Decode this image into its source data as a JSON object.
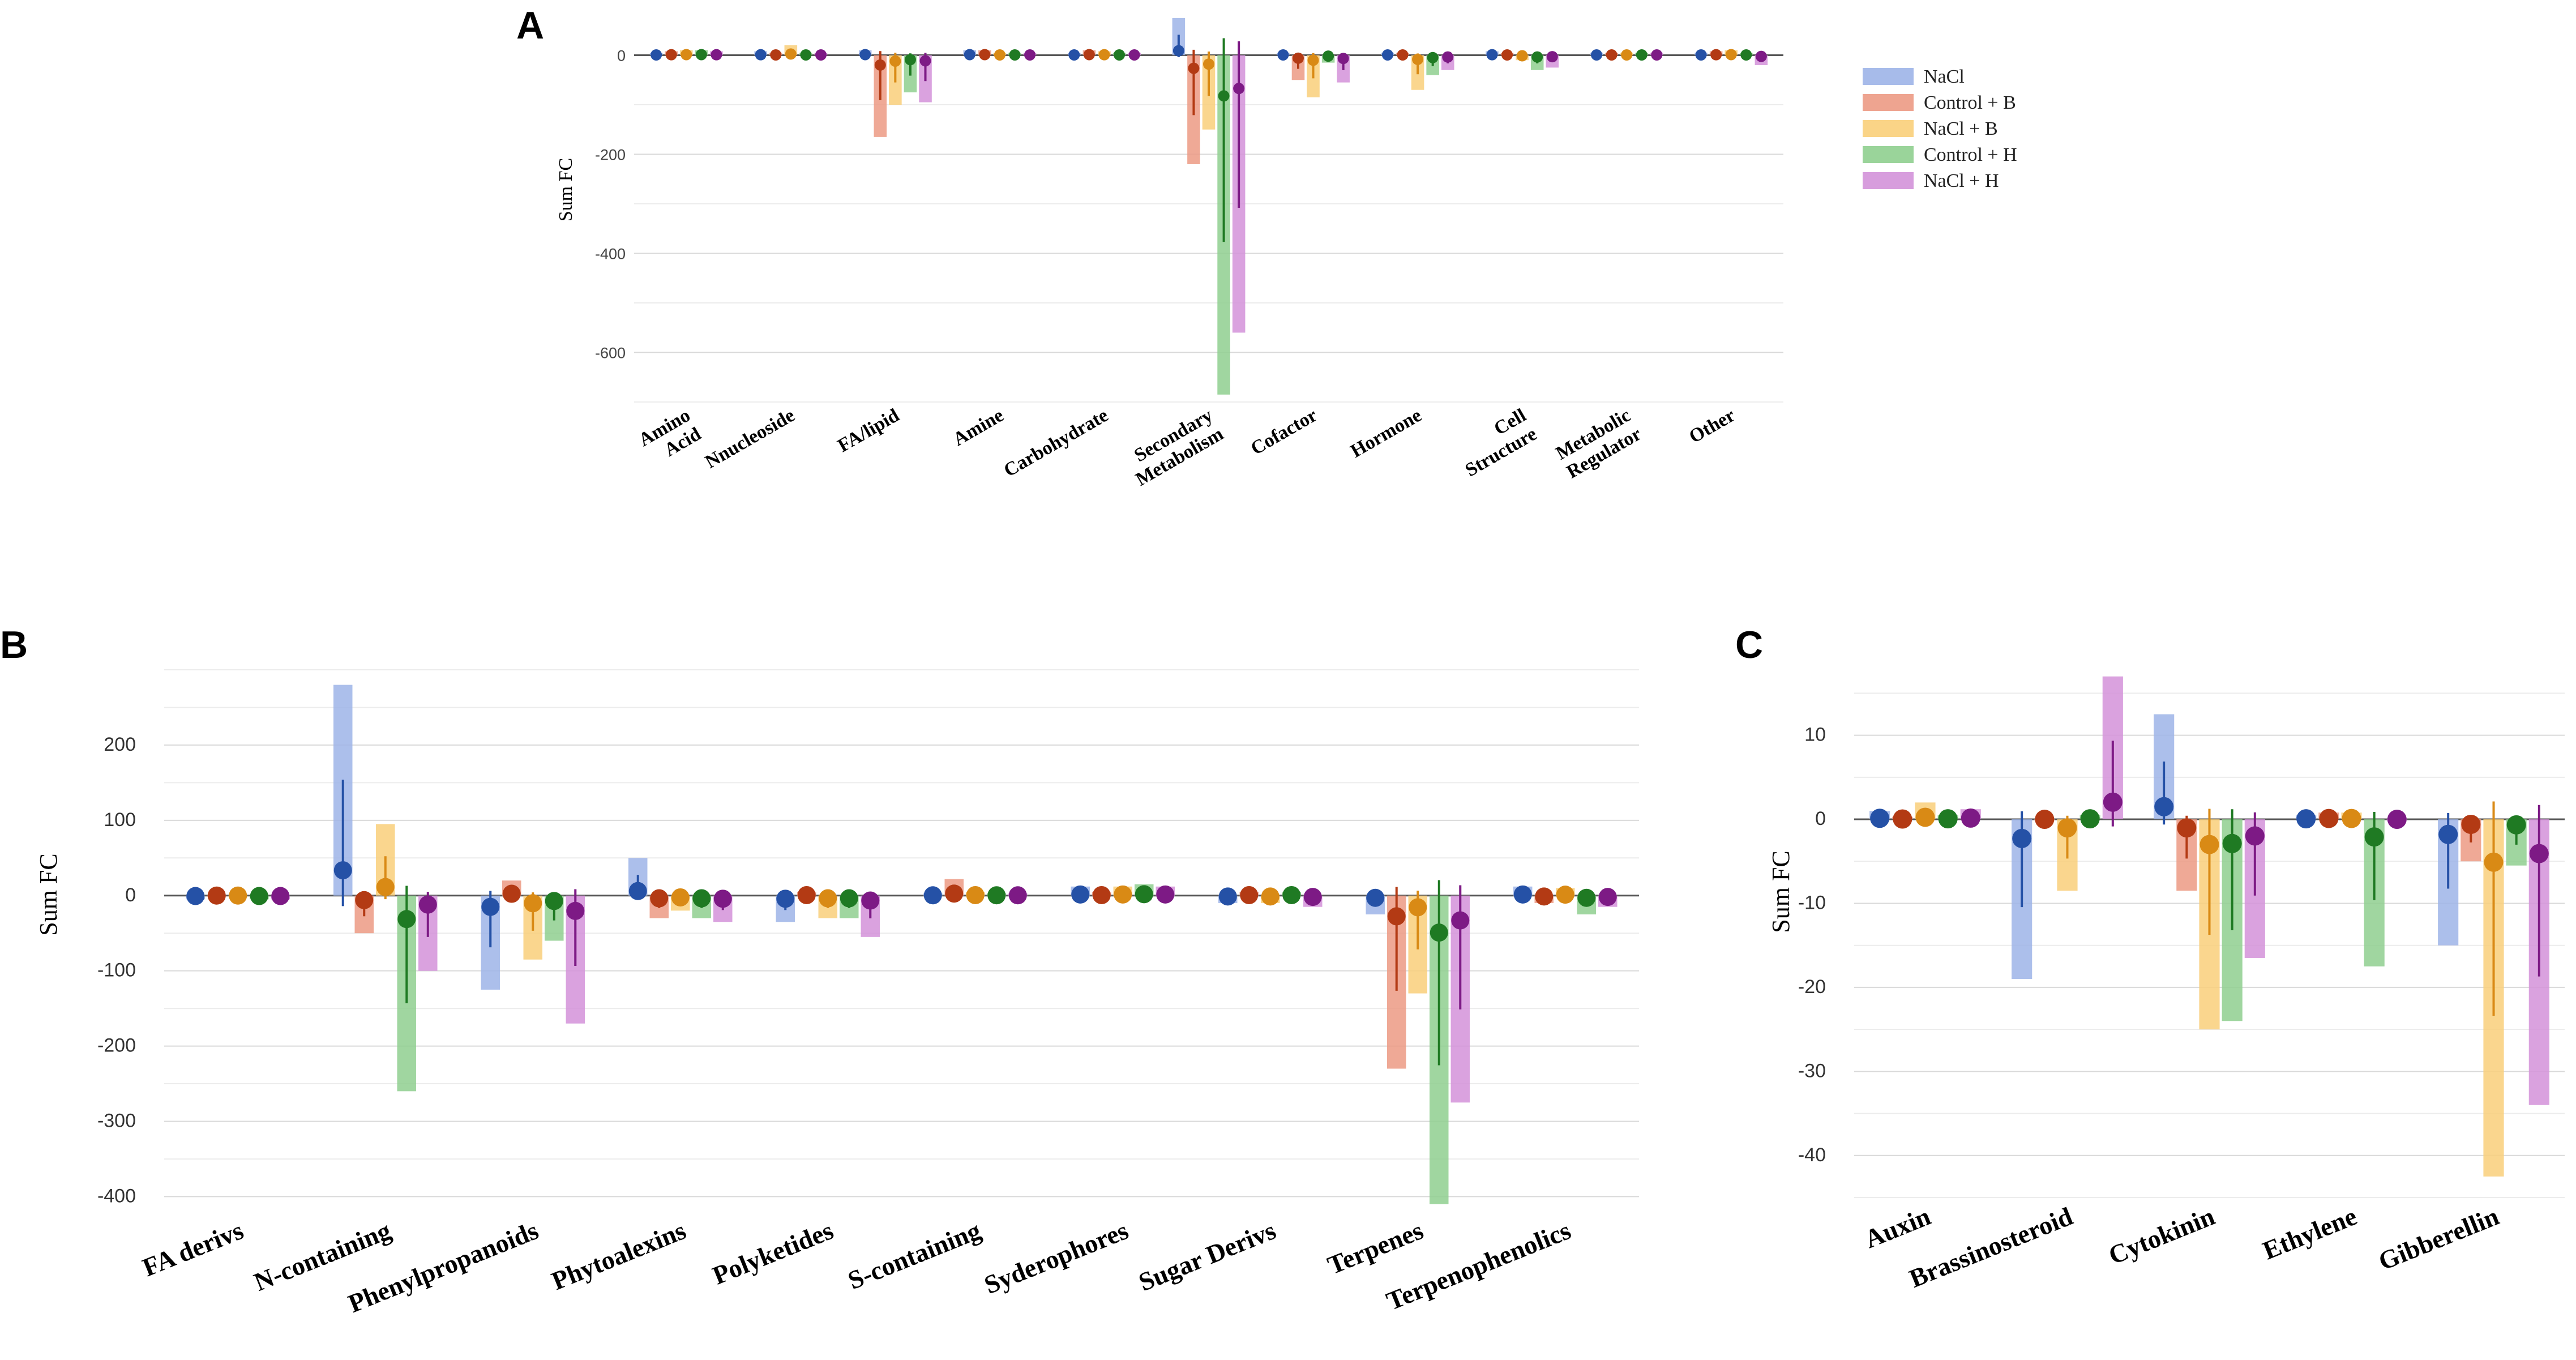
{
  "chart_data": [
    {
      "panel": "A",
      "type": "bar",
      "title": "",
      "ylabel": "Sum FC",
      "xlabel": "",
      "ylim": [
        -700,
        60
      ],
      "yticks": [
        0,
        -200,
        -400,
        -600
      ],
      "categories": [
        "Amino Acid",
        "Nnucleoside",
        "FA/lipid",
        "Amine",
        "Carbohydrate",
        "Secondary Metabolism",
        "Cofactor",
        "Hormone",
        "Cell Structure",
        "Metabolic Regulator",
        "Other"
      ],
      "series": [
        {
          "name": "NaCl",
          "values": [
            5,
            8,
            10,
            10,
            5,
            75,
            5,
            5,
            8,
            5,
            5
          ]
        },
        {
          "name": "Control + B",
          "values": [
            8,
            5,
            -165,
            10,
            10,
            -220,
            -50,
            5,
            5,
            5,
            8
          ]
        },
        {
          "name": "NaCl + B",
          "values": [
            10,
            20,
            -100,
            5,
            8,
            -150,
            -85,
            -70,
            -10,
            5,
            10
          ]
        },
        {
          "name": "Control + H",
          "values": [
            10,
            5,
            -75,
            5,
            5,
            -685,
            -15,
            -40,
            -30,
            5,
            5
          ]
        },
        {
          "name": "NaCl + H",
          "values": [
            8,
            5,
            -95,
            5,
            5,
            -560,
            -55,
            -30,
            -25,
            5,
            -20
          ]
        }
      ]
    },
    {
      "panel": "B",
      "type": "bar",
      "title": "",
      "ylabel": "Sum FC",
      "xlabel": "",
      "ylim": [
        -420,
        300
      ],
      "yticks": [
        200,
        100,
        0,
        -100,
        -200,
        -300,
        -400
      ],
      "categories": [
        "FA derivs",
        "N-containing",
        "Phenylpropanoids",
        "Phytoalexins",
        "Polyketides",
        "S-containing",
        "Syderophores",
        "Sugar Derivs",
        "Terpenes",
        "Terpenophenolics"
      ],
      "series": [
        {
          "name": "NaCl",
          "values": [
            -5,
            280,
            -125,
            50,
            -35,
            3,
            12,
            -10,
            -25,
            12
          ]
        },
        {
          "name": "Control + B",
          "values": [
            0,
            -50,
            20,
            -30,
            5,
            22,
            5,
            5,
            -230,
            -10
          ]
        },
        {
          "name": "NaCl + B",
          "values": [
            0,
            95,
            -85,
            -20,
            -30,
            5,
            12,
            -10,
            -130,
            10
          ]
        },
        {
          "name": "Control + H",
          "values": [
            -5,
            -260,
            -60,
            -30,
            -30,
            3,
            15,
            5,
            -410,
            -25
          ]
        },
        {
          "name": "NaCl + H",
          "values": [
            -5,
            -100,
            -170,
            -35,
            -55,
            3,
            12,
            -15,
            -275,
            -15
          ]
        }
      ]
    },
    {
      "panel": "C",
      "type": "bar",
      "title": "",
      "ylabel": "Sum FC",
      "xlabel": "",
      "ylim": [
        -45,
        19
      ],
      "yticks": [
        10,
        0,
        -10,
        -20,
        -30,
        -40
      ],
      "categories": [
        "Auxin",
        "Brassinosteroid",
        "Cytokinin",
        "Ethylene",
        "Gibberellin"
      ],
      "series": [
        {
          "name": "NaCl",
          "values": [
            1,
            -19,
            12.5,
            0.5,
            -15
          ]
        },
        {
          "name": "Control + B",
          "values": [
            0.3,
            0,
            -8.5,
            0.8,
            -5
          ]
        },
        {
          "name": "NaCl + B",
          "values": [
            2,
            -8.5,
            -25,
            0.8,
            -42.5
          ]
        },
        {
          "name": "Control + H",
          "values": [
            0.5,
            0.5,
            -24,
            -17.5,
            -5.5
          ]
        },
        {
          "name": "NaCl + H",
          "values": [
            1.2,
            17,
            -16.5,
            0,
            -34
          ]
        }
      ]
    }
  ],
  "panel_labels": {
    "a": "A",
    "b": "B",
    "c": "C"
  },
  "legend": {
    "entries": [
      "NaCl",
      "Control + B",
      "NaCl + B",
      "Control + H",
      "NaCl + H"
    ],
    "placement": "right of panel A"
  },
  "colors": {
    "bars": [
      "#9db4e8",
      "#ec9a84",
      "#f9cf7a",
      "#8fcf8f",
      "#d392d9"
    ],
    "dots": [
      "#2551a6",
      "#b33a14",
      "#d98a15",
      "#1f7a23",
      "#7d1a85"
    ],
    "grid": "#d9d9d9",
    "zero": "#555555"
  }
}
